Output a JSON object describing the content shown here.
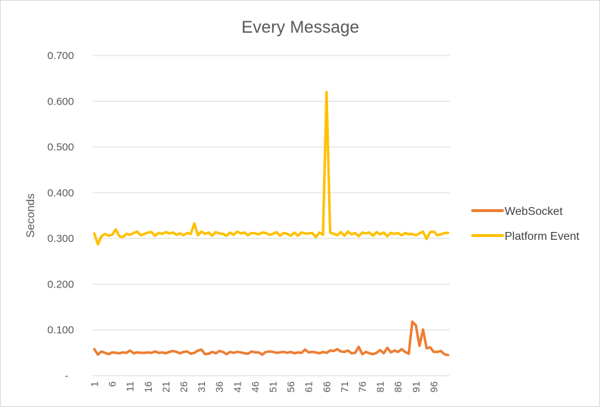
{
  "chart_data": {
    "type": "line",
    "title": "Every Message",
    "xlabel": "",
    "ylabel": "Seconds",
    "ylim": [
      0,
      0.7
    ],
    "y_ticks": [
      "-",
      "0.100",
      "0.200",
      "0.300",
      "0.400",
      "0.500",
      "0.600",
      "0.700"
    ],
    "x_tick_labels": [
      "1",
      "6",
      "11",
      "16",
      "21",
      "26",
      "31",
      "36",
      "41",
      "46",
      "51",
      "56",
      "61",
      "66",
      "71",
      "76",
      "81",
      "86",
      "91",
      "96"
    ],
    "x": [
      1,
      2,
      3,
      4,
      5,
      6,
      7,
      8,
      9,
      10,
      11,
      12,
      13,
      14,
      15,
      16,
      17,
      18,
      19,
      20,
      21,
      22,
      23,
      24,
      25,
      26,
      27,
      28,
      29,
      30,
      31,
      32,
      33,
      34,
      35,
      36,
      37,
      38,
      39,
      40,
      41,
      42,
      43,
      44,
      45,
      46,
      47,
      48,
      49,
      50,
      51,
      52,
      53,
      54,
      55,
      56,
      57,
      58,
      59,
      60,
      61,
      62,
      63,
      64,
      65,
      66,
      67,
      68,
      69,
      70,
      71,
      72,
      73,
      74,
      75,
      76,
      77,
      78,
      79,
      80,
      81,
      82,
      83,
      84,
      85,
      86,
      87,
      88,
      89,
      90,
      91,
      92,
      93,
      94,
      95,
      96,
      97,
      98,
      99,
      100
    ],
    "grid": true,
    "legend_position": "right",
    "series": [
      {
        "name": "WebSocket",
        "color": "#ED7D31",
        "values": [
          0.058,
          0.046,
          0.053,
          0.05,
          0.047,
          0.051,
          0.05,
          0.049,
          0.051,
          0.05,
          0.055,
          0.049,
          0.051,
          0.05,
          0.05,
          0.051,
          0.05,
          0.053,
          0.05,
          0.051,
          0.049,
          0.052,
          0.054,
          0.052,
          0.049,
          0.052,
          0.053,
          0.048,
          0.05,
          0.055,
          0.057,
          0.047,
          0.048,
          0.052,
          0.049,
          0.054,
          0.052,
          0.047,
          0.052,
          0.05,
          0.052,
          0.051,
          0.049,
          0.048,
          0.053,
          0.051,
          0.051,
          0.046,
          0.052,
          0.053,
          0.052,
          0.05,
          0.051,
          0.052,
          0.05,
          0.052,
          0.049,
          0.051,
          0.05,
          0.057,
          0.051,
          0.052,
          0.051,
          0.049,
          0.052,
          0.05,
          0.055,
          0.054,
          0.058,
          0.053,
          0.052,
          0.055,
          0.049,
          0.05,
          0.063,
          0.047,
          0.052,
          0.049,
          0.047,
          0.05,
          0.056,
          0.049,
          0.061,
          0.051,
          0.055,
          0.052,
          0.058,
          0.052,
          0.048,
          0.118,
          0.11,
          0.065,
          0.101,
          0.06,
          0.062,
          0.052,
          0.052,
          0.054,
          0.047,
          0.045
        ]
      },
      {
        "name": "Platform Event",
        "color": "#FFC000",
        "values": [
          0.311,
          0.287,
          0.305,
          0.31,
          0.306,
          0.308,
          0.32,
          0.305,
          0.303,
          0.31,
          0.308,
          0.312,
          0.315,
          0.307,
          0.31,
          0.313,
          0.314,
          0.306,
          0.312,
          0.31,
          0.314,
          0.311,
          0.313,
          0.308,
          0.311,
          0.307,
          0.312,
          0.31,
          0.333,
          0.307,
          0.315,
          0.31,
          0.313,
          0.306,
          0.314,
          0.311,
          0.31,
          0.306,
          0.313,
          0.308,
          0.315,
          0.311,
          0.313,
          0.307,
          0.312,
          0.311,
          0.309,
          0.313,
          0.312,
          0.308,
          0.31,
          0.314,
          0.306,
          0.312,
          0.31,
          0.306,
          0.313,
          0.306,
          0.313,
          0.311,
          0.311,
          0.312,
          0.303,
          0.313,
          0.308,
          0.62,
          0.313,
          0.31,
          0.307,
          0.314,
          0.306,
          0.315,
          0.309,
          0.312,
          0.305,
          0.313,
          0.311,
          0.313,
          0.306,
          0.314,
          0.309,
          0.313,
          0.305,
          0.312,
          0.31,
          0.312,
          0.307,
          0.312,
          0.309,
          0.31,
          0.307,
          0.311,
          0.315,
          0.299,
          0.314,
          0.315,
          0.307,
          0.309,
          0.312,
          0.312
        ]
      }
    ]
  }
}
